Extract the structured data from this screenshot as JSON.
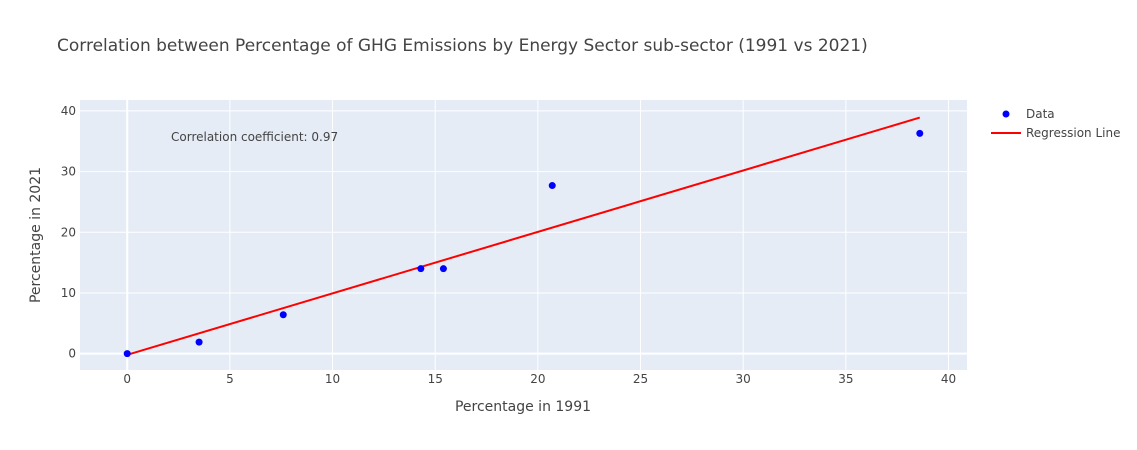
{
  "chart_data": {
    "type": "scatter",
    "title": "Correlation between Percentage of GHG Emissions by Energy Sector sub-sector (1991 vs 2021)",
    "xlabel": "Percentage in 1991",
    "ylabel": "Percentage in 2021",
    "xlim": [
      -2.3,
      40.9
    ],
    "ylim": [
      -2.7,
      41.8
    ],
    "x_ticks": [
      0,
      5,
      10,
      15,
      20,
      25,
      30,
      35,
      40
    ],
    "y_ticks": [
      0,
      10,
      20,
      30,
      40
    ],
    "grid": true,
    "legend_position": "top-right",
    "series": [
      {
        "name": "Data",
        "kind": "markers",
        "color": "#0000ff",
        "x": [
          0,
          3.5,
          7.6,
          14.3,
          15.4,
          20.7,
          38.6
        ],
        "y": [
          0,
          1.9,
          6.4,
          14.0,
          14.0,
          27.7,
          36.3
        ]
      },
      {
        "name": "Regression Line",
        "kind": "line",
        "color": "#ff0000",
        "x": [
          0,
          38.6
        ],
        "y": [
          -0.2,
          38.9
        ]
      }
    ],
    "annotations": [
      {
        "text": "Correlation coefficient: 0.97"
      }
    ]
  }
}
